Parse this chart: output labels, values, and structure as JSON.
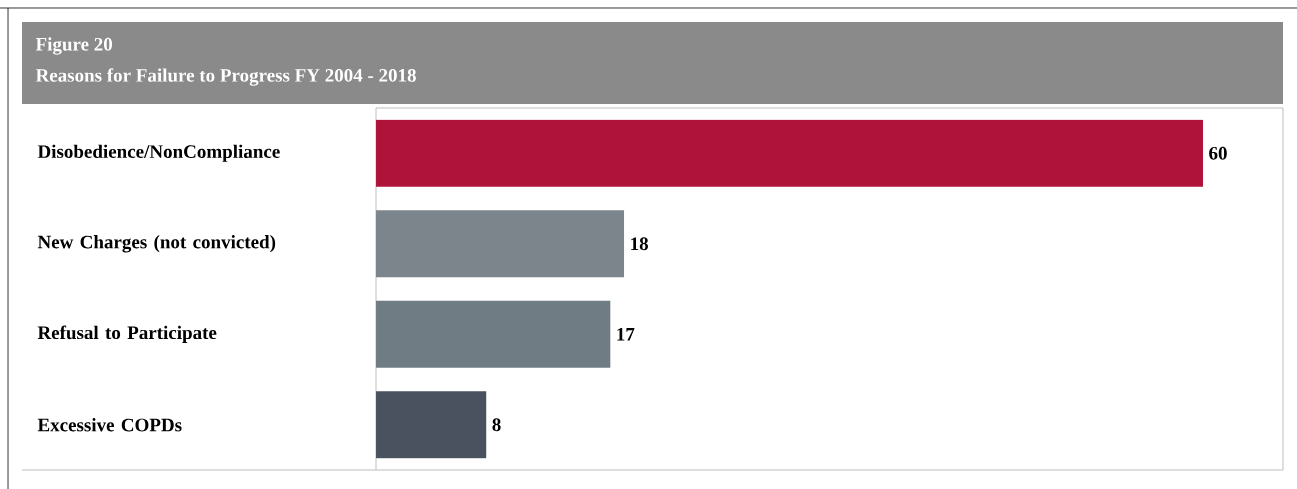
{
  "chart_data": {
    "type": "bar",
    "orientation": "horizontal",
    "title": "Figure 20",
    "subtitle": "Reasons for Failure to Progress FY 2004 - 2018",
    "categories": [
      "Disobedience/NonCompliance",
      "New Charges (not convicted)",
      "Refusal to Participate",
      "Excessive COPDs"
    ],
    "values": [
      60,
      18,
      17,
      8
    ],
    "colors": [
      "#b0133a",
      "#7b858b",
      "#6f7c84",
      "#4a5260"
    ],
    "data_labels": true
  }
}
